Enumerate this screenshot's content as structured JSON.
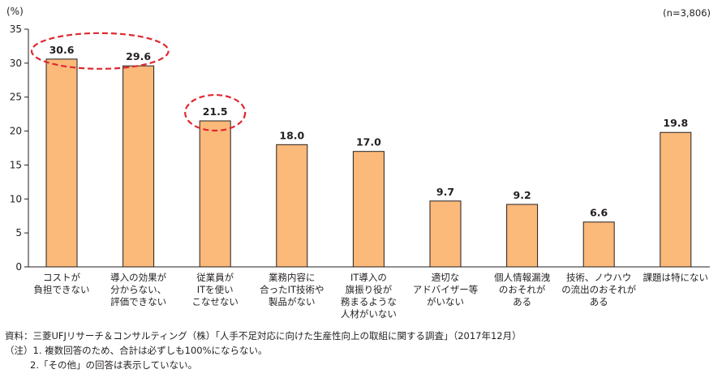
{
  "chart_data": {
    "type": "bar",
    "unit_label": "(%)",
    "n_label": "(n=3,806)",
    "ylim": [
      0,
      35
    ],
    "yticks": [
      0,
      5,
      10,
      15,
      20,
      25,
      30,
      35
    ],
    "categories": [
      [
        "コストが",
        "負担できない"
      ],
      [
        "導入の効果が",
        "分からない、",
        "評価できない"
      ],
      [
        "従業員が",
        "ITを使い",
        "こなせない"
      ],
      [
        "業務内容に",
        "合ったIT技術や",
        "製品がない"
      ],
      [
        "IT導入の",
        "旗振り役が",
        "務まるような",
        "人材がいない"
      ],
      [
        "適切な",
        "アドバイザー等",
        "がいない"
      ],
      [
        "個人情報漏洩",
        "のおそれが",
        "ある"
      ],
      [
        "技術、ノウハウ",
        "の流出のおそれが",
        "ある"
      ],
      [
        "課題は特にない"
      ]
    ],
    "values": [
      30.6,
      29.6,
      21.5,
      18.0,
      17.0,
      9.7,
      9.2,
      6.6,
      19.8
    ],
    "value_labels": [
      "30.6",
      "29.6",
      "21.5",
      "18.0",
      "17.0",
      "9.7",
      "9.2",
      "6.6",
      "19.8"
    ],
    "highlighted": [
      [
        0,
        1
      ],
      [
        2
      ]
    ],
    "grid": false,
    "colors": {
      "bar": "#fbb97a",
      "bar_edge": "#231f20",
      "highlight": "#e0282f"
    }
  },
  "footnotes": {
    "source": "資料：三菱UFJリサーチ＆コンサルティング（株）「人手不足対応に向けた生産性向上の取組に関する調査」（2017年12月）",
    "note1": "（注）1. 複数回答のため、合計は必ずしも100%にならない。",
    "note2": "2.「その他」の回答は表示していない。"
  }
}
